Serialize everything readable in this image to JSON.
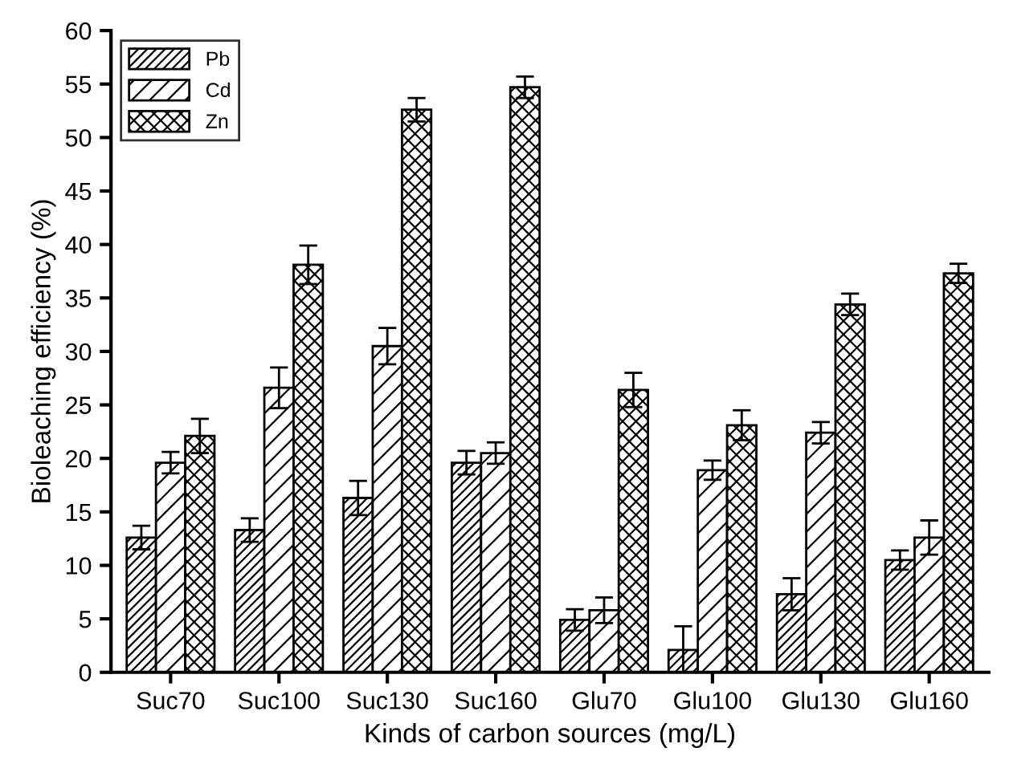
{
  "chart_data": {
    "type": "bar",
    "xlabel": "Kinds of carbon sources (mg/L)",
    "ylabel": "Bioleaching efficiency (%)",
    "categories": [
      "Suc70",
      "Suc100",
      "Suc130",
      "Suc160",
      "Glu70",
      "Glu100",
      "Glu130",
      "Glu160"
    ],
    "series": [
      {
        "name": "Pb",
        "color": "#000000",
        "values": [
          12.6,
          13.3,
          16.3,
          19.6,
          4.9,
          2.1,
          7.3,
          10.5
        ],
        "errors": [
          1.1,
          1.1,
          1.6,
          1.1,
          1.0,
          2.2,
          1.5,
          0.9
        ]
      },
      {
        "name": "Cd",
        "color": "#000000",
        "values": [
          19.6,
          26.6,
          30.5,
          20.5,
          5.8,
          18.9,
          22.4,
          12.6
        ],
        "errors": [
          1.0,
          1.9,
          1.7,
          1.0,
          1.2,
          0.9,
          1.0,
          1.6
        ]
      },
      {
        "name": "Zn",
        "color": "#000000",
        "values": [
          22.1,
          38.1,
          52.6,
          54.7,
          26.4,
          23.1,
          34.4,
          37.3
        ],
        "errors": [
          1.6,
          1.8,
          1.1,
          1.0,
          1.6,
          1.4,
          1.0,
          0.9
        ]
      }
    ],
    "ylim": [
      0,
      60
    ],
    "yticks": [
      0,
      5,
      10,
      15,
      20,
      25,
      30,
      35,
      40,
      45,
      50,
      55,
      60
    ],
    "grid": false,
    "legend": "top left"
  }
}
